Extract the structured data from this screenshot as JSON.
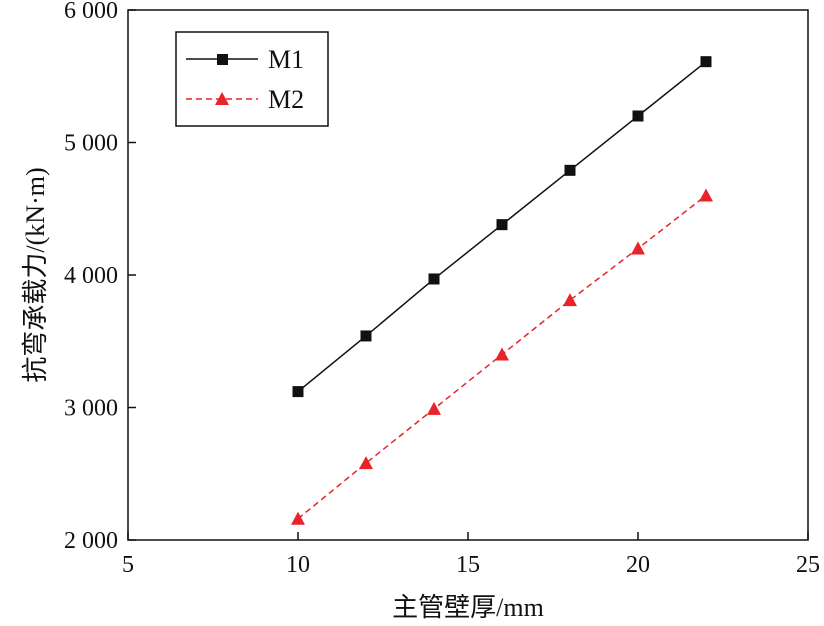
{
  "chart_data": {
    "type": "line",
    "xlabel": "主管壁厚/mm",
    "ylabel": "抗弯承载力/(kN·m)",
    "xlim": [
      5,
      25
    ],
    "ylim": [
      2000,
      6000
    ],
    "xticks": [
      5,
      10,
      15,
      20,
      25
    ],
    "yticks": [
      2000,
      3000,
      4000,
      5000,
      6000
    ],
    "xtick_labels": [
      "5",
      "10",
      "15",
      "20",
      "25"
    ],
    "ytick_labels": [
      "2 000",
      "3 000",
      "4 000",
      "5 000",
      "6 000"
    ],
    "grid": false,
    "legend_position": "top-left",
    "series": [
      {
        "name": "M1",
        "color": "#111111",
        "line_style": "solid",
        "marker": "square",
        "x": [
          10,
          12,
          14,
          16,
          18,
          20,
          22
        ],
        "y": [
          3120,
          3540,
          3970,
          4380,
          4790,
          5200,
          5610
        ]
      },
      {
        "name": "M2",
        "color": "#e8232a",
        "line_style": "dashed",
        "marker": "triangle",
        "x": [
          10,
          12,
          14,
          16,
          18,
          20,
          22
        ],
        "y": [
          2160,
          2580,
          2990,
          3400,
          3810,
          4200,
          4600
        ]
      }
    ]
  }
}
